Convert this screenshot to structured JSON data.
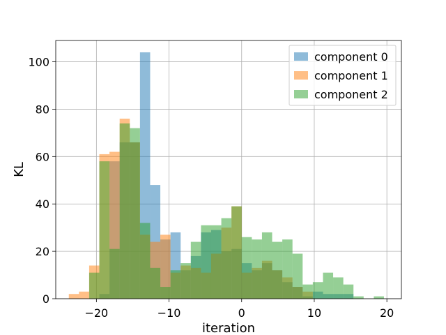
{
  "chart_data": {
    "type": "bar",
    "title": "",
    "xlabel": "iteration",
    "ylabel": "KL",
    "xlim": [
      -25.6,
      22
    ],
    "ylim": [
      0,
      109
    ],
    "xticks": [
      -20,
      -10,
      0,
      10,
      20
    ],
    "yticks": [
      0,
      20,
      40,
      60,
      80,
      100
    ],
    "grid": true,
    "legend_position": "top-right",
    "bar_alpha": 0.5,
    "bin_width": 1.4,
    "series": [
      {
        "name": "component 0",
        "color": "#1f77b4",
        "x": [
          -19.6,
          -18.2,
          -16.8,
          -15.4,
          -14.0,
          -12.6,
          -11.2,
          -9.8,
          -8.4,
          -7.0,
          -5.6,
          -4.2,
          -2.8,
          -1.4,
          0.0,
          1.4,
          2.8,
          4.2,
          5.6,
          7.0,
          8.4,
          9.8,
          11.2,
          12.6,
          14.0
        ],
        "values": [
          2,
          58,
          66,
          66,
          104,
          48,
          25,
          28,
          12,
          18,
          28,
          29,
          20,
          21,
          15,
          12,
          15,
          12,
          7,
          5,
          1,
          3,
          2,
          2,
          2
        ]
      },
      {
        "name": "component 1",
        "color": "#ff7f0e",
        "x": [
          -23.8,
          -22.4,
          -21.0,
          -19.6,
          -18.2,
          -16.8,
          -15.4,
          -14.0,
          -12.6,
          -11.2,
          -9.8,
          -8.4,
          -7.0,
          -5.6,
          -4.2,
          -2.8,
          -1.4,
          0.0,
          1.4,
          2.8,
          4.2,
          5.6,
          7.0,
          8.4
        ],
        "values": [
          2,
          3,
          14,
          61,
          62,
          76,
          66,
          27,
          24,
          27,
          11,
          14,
          13,
          11,
          19,
          30,
          39,
          11,
          13,
          16,
          12,
          9,
          5,
          3
        ]
      },
      {
        "name": "component 2",
        "color": "#2ca02c",
        "x": [
          -21.0,
          -19.6,
          -18.2,
          -16.8,
          -15.4,
          -14.0,
          -12.6,
          -11.2,
          -9.8,
          -8.4,
          -7.0,
          -5.6,
          -4.2,
          -2.8,
          -1.4,
          0.0,
          1.4,
          2.8,
          4.2,
          5.6,
          7.0,
          8.4,
          9.8,
          11.2,
          12.6,
          14.0,
          15.4,
          16.8,
          18.2
        ],
        "values": [
          11,
          58,
          21,
          74,
          72,
          32,
          13,
          5,
          12,
          15,
          24,
          31,
          31,
          34,
          39,
          26,
          25,
          28,
          24,
          25,
          19,
          6,
          7,
          11,
          9,
          6,
          1,
          0,
          1
        ]
      }
    ]
  }
}
